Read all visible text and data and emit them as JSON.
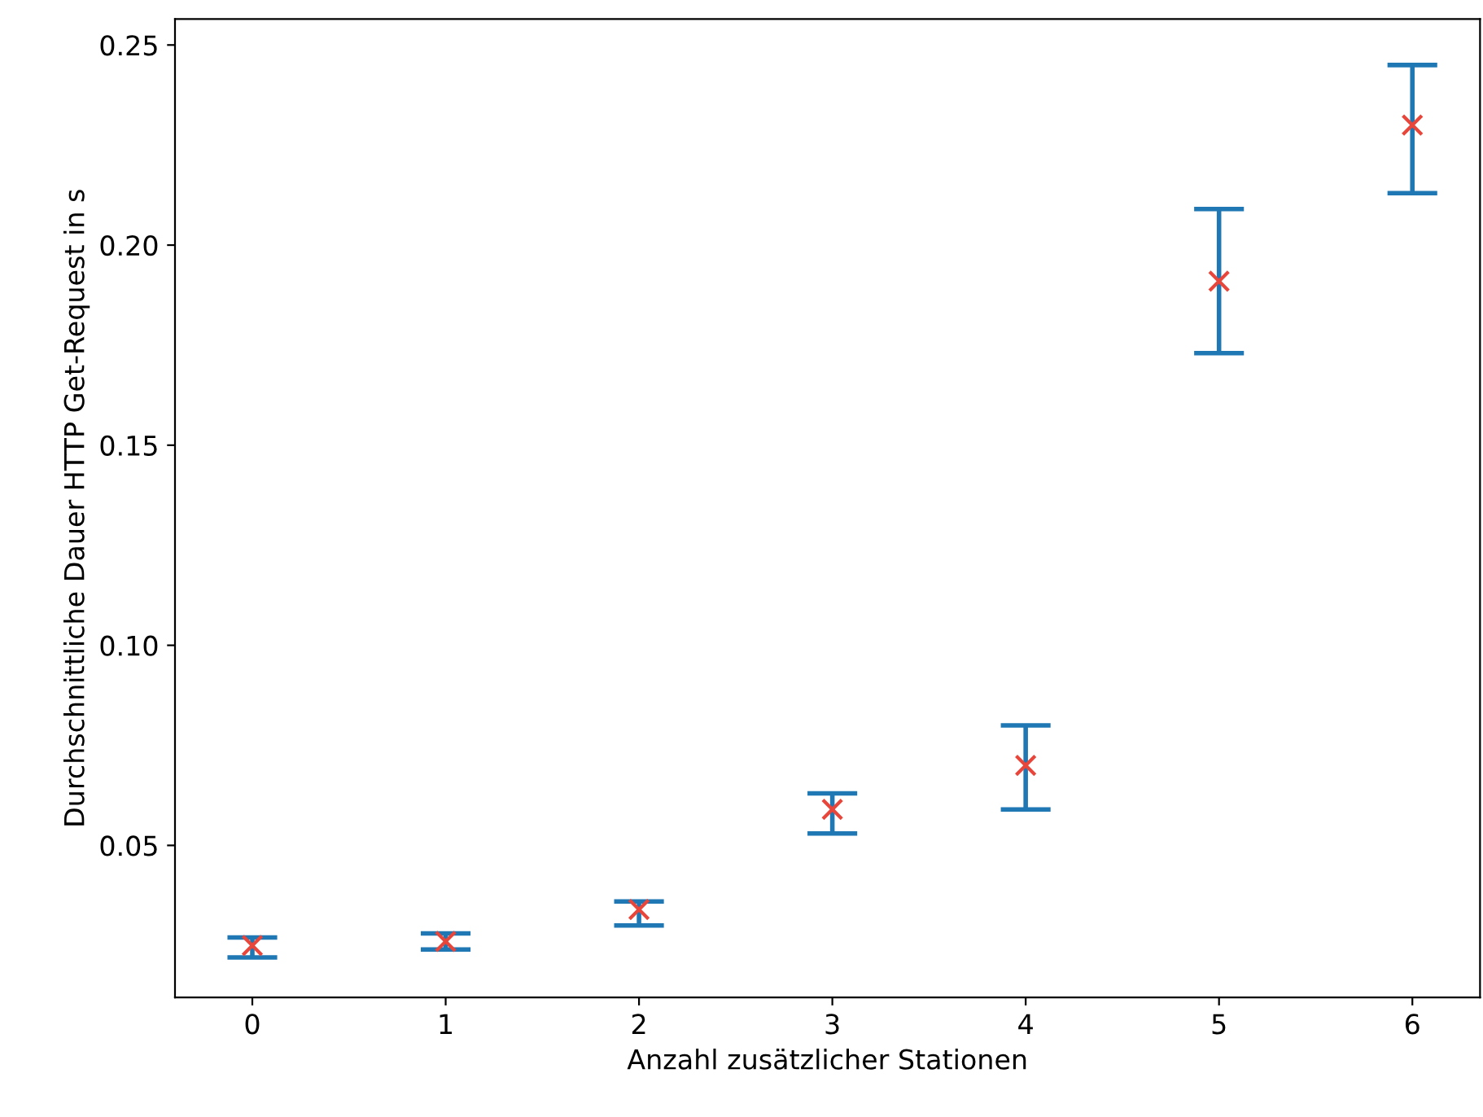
{
  "chart_data": {
    "type": "scatter",
    "xlabel": "Anzahl zusätzlicher Stationen",
    "ylabel": "Durchschnittliche Dauer HTTP Get-Request in s",
    "x": [
      0,
      1,
      2,
      3,
      4,
      5,
      6
    ],
    "series": [
      {
        "color": "#e8463a",
        "values": [
          0.025,
          0.026,
          0.034,
          0.059,
          0.07,
          0.191,
          0.23
        ],
        "errors": [
          [
            0.022,
            0.027
          ],
          [
            0.024,
            0.028
          ],
          [
            0.03,
            0.036
          ],
          [
            0.053,
            0.063
          ],
          [
            0.059,
            0.08
          ],
          [
            0.173,
            0.209
          ],
          [
            0.213,
            0.245
          ]
        ]
      }
    ],
    "marker": "cross",
    "grid": false,
    "legend": false,
    "xlim": [
      -0.4,
      6.35
    ],
    "ylim": [
      0.012,
      0.2565
    ],
    "xticks": [
      0,
      1,
      2,
      3,
      4,
      5,
      6
    ],
    "yticks": [
      {
        "value": 0.05,
        "label": "0.05"
      },
      {
        "value": 0.1,
        "label": "0.10"
      },
      {
        "value": 0.15,
        "label": "0.15"
      },
      {
        "value": 0.2,
        "label": "0.20"
      },
      {
        "value": 0.25,
        "label": "0.25"
      }
    ]
  }
}
